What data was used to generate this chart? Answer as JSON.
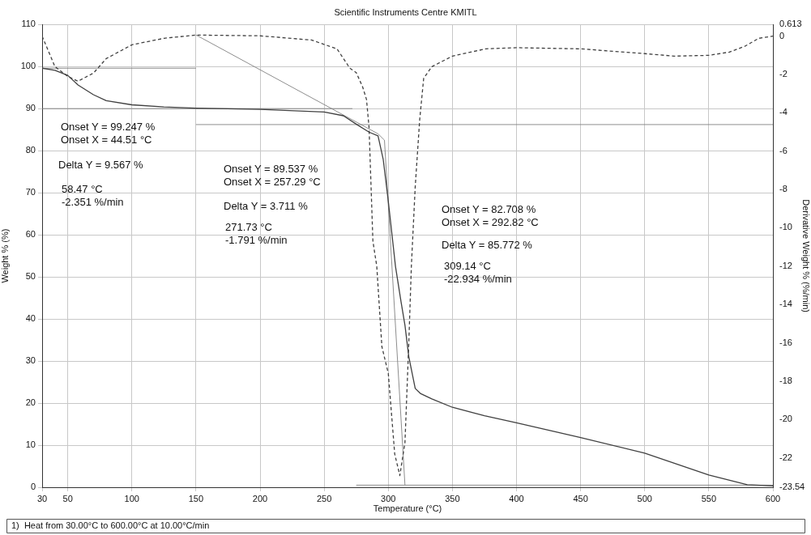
{
  "chart_data": {
    "type": "line",
    "title": "Scientific Instruments Centre KMITL",
    "xlabel": "Temperature (°C)",
    "ylabel": "Weight % (%)",
    "y2label": "Derivative Weight % (%/min)",
    "xlim": [
      30,
      600
    ],
    "xticks": [
      30,
      50,
      100,
      150,
      200,
      250,
      300,
      350,
      400,
      450,
      500,
      550,
      600
    ],
    "ylim": [
      0,
      110
    ],
    "yticks": [
      0,
      10,
      20,
      30,
      40,
      50,
      60,
      70,
      80,
      90,
      100,
      110
    ],
    "y2lim": [
      -23.54,
      0.613
    ],
    "y2ticks": [
      0.613,
      0,
      -2,
      -4,
      -6,
      -8,
      -10,
      -12,
      -14,
      -16,
      -18,
      -20,
      -22,
      -23.54
    ],
    "grid": true,
    "marker": "none",
    "series": [
      {
        "color": "#404040",
        "line_style": "solid",
        "x": [
          30,
          40,
          50,
          58,
          70,
          80,
          100,
          125,
          150,
          200,
          250,
          265,
          275,
          285,
          292,
          296,
          300,
          305.6,
          310,
          313,
          316,
          321,
          325,
          334,
          350,
          375,
          400,
          450,
          500,
          550,
          580,
          600
        ],
        "values": [
          99.6,
          99.1,
          97.9,
          95.6,
          93.3,
          91.9,
          90.9,
          90.4,
          90.1,
          89.8,
          89.2,
          88.3,
          86.3,
          84.4,
          83.5,
          78,
          68,
          52.5,
          44,
          38.5,
          31,
          23.5,
          22.3,
          21,
          19,
          17,
          15.3,
          11.8,
          8.1,
          2.9,
          0.6,
          0.3
        ]
      },
      {
        "color": "#404040",
        "line_style": "dashed",
        "axis": "y2",
        "x": [
          30,
          40,
          50,
          58,
          70,
          80,
          100,
          125,
          150,
          200,
          240,
          260,
          270,
          275,
          280,
          283,
          285,
          288,
          291,
          295,
          300,
          305,
          309,
          313,
          316,
          318,
          321,
          324.5,
          327.6,
          334,
          350,
          376,
          400,
          450,
          500,
          523,
          550,
          566,
          578,
          589,
          600
        ],
        "values": [
          0,
          -1.59,
          -2.1,
          -2.35,
          -1.93,
          -1.17,
          -0.45,
          -0.11,
          0.06,
          0.02,
          -0.2,
          -0.66,
          -1.67,
          -1.9,
          -2.65,
          -3.3,
          -4.77,
          -10.7,
          -12,
          -16.2,
          -17.6,
          -21.8,
          -22.93,
          -21.2,
          -16,
          -12,
          -7.86,
          -4.35,
          -2.2,
          -1.59,
          -1.04,
          -0.66,
          -0.6,
          -0.66,
          -0.91,
          -1.04,
          -1,
          -0.83,
          -0.53,
          -0.11,
          0
        ]
      },
      {
        "color": "#808080",
        "line_style": "solid",
        "x": [
          30,
          150
        ],
        "values": [
          99.6,
          99.6
        ]
      },
      {
        "color": "#808080",
        "line_style": "solid",
        "x": [
          30,
          272
        ],
        "values": [
          90,
          90
        ]
      },
      {
        "color": "#808080",
        "line_style": "solid",
        "x": [
          150,
          600
        ],
        "values": [
          86.2,
          86.2
        ]
      },
      {
        "color": "#808080",
        "line_style": "solid",
        "x": [
          150,
          292,
          297
        ],
        "values": [
          107.5,
          84,
          82.5
        ]
      },
      {
        "color": "#808080",
        "line_style": "solid",
        "x": [
          297,
          313
        ],
        "values": [
          82.5,
          0.5
        ]
      },
      {
        "color": "#808080",
        "line_style": "solid",
        "x": [
          275,
          600
        ],
        "values": [
          0.5,
          0.5
        ]
      }
    ],
    "annotations": [
      "Onset Y = 99.247 %",
      "Onset X = 44.51 °C",
      "Delta Y = 9.567 %",
      "58.47 °C",
      "-2.351 %/min",
      "Onset Y = 89.537 %",
      "Onset X = 257.29 °C",
      "Delta Y = 3.711 %",
      "271.73 °C",
      "-1.791 %/min",
      "Onset Y = 82.708 %",
      "Onset X = 292.82 °C",
      "Delta Y = 85.772 %",
      "309.14 °C",
      "-22.934 %/min",
      "1)  Heat from 30.00°C to 600.00°C at 10.00°C/min"
    ]
  }
}
